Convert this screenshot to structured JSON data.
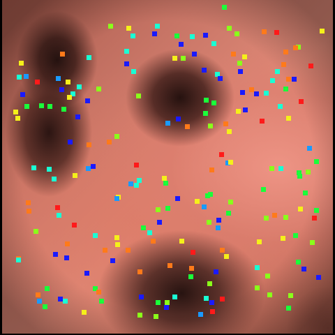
{
  "image": {
    "subject": "endoscopic-tissue",
    "palette": {
      "tissue_light": "#e8907f",
      "tissue_mid": "#c87566",
      "tissue_dark": "#3a1a16"
    }
  },
  "marker_colors": {
    "red": "#ff1a1a",
    "orange": "#ff7a1a",
    "yellow": "#f5f01a",
    "lime": "#8aff1a",
    "green": "#1aff3a",
    "cyan": "#1affd4",
    "sky": "#1a9aff",
    "blue": "#1a1aff"
  }
}
